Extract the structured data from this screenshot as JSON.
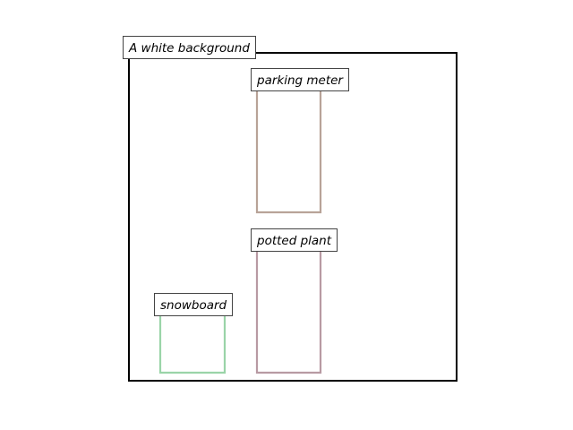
{
  "scene": {
    "background_label": "A white background",
    "frame_color": "#000000"
  },
  "objects": [
    {
      "id": "parking-meter",
      "label": "parking meter",
      "color": "#b8a398"
    },
    {
      "id": "potted-plant",
      "label": "potted plant",
      "color": "#b89aa3"
    },
    {
      "id": "snowboard",
      "label": "snowboard",
      "color": "#9ad4a8"
    }
  ]
}
